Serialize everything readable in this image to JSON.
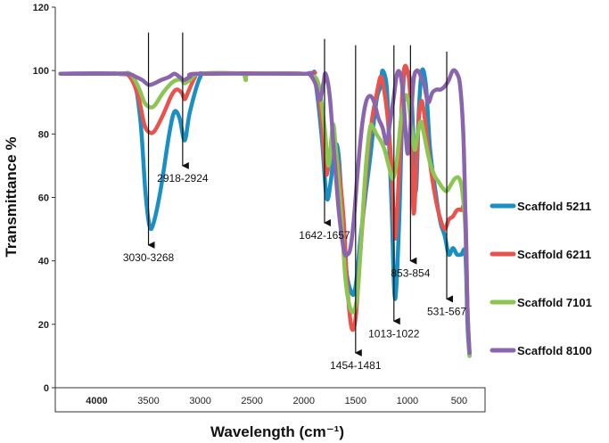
{
  "chart_data": {
    "type": "line",
    "title": "",
    "xlabel": "Wavelength (cm⁻¹)",
    "ylabel": "Transmittance %",
    "xlim": [
      4400,
      250
    ],
    "ylim": [
      0,
      120
    ],
    "y_ticks": [
      0,
      20,
      40,
      60,
      80,
      100,
      120
    ],
    "x_ticks": [
      {
        "value": 4000,
        "label": "4000",
        "bold": true
      },
      {
        "value": 3500,
        "label": "3500"
      },
      {
        "value": 3000,
        "label": "3000"
      },
      {
        "value": 2500,
        "label": "2500"
      },
      {
        "value": 2000,
        "label": "2000"
      },
      {
        "value": 1500,
        "label": "1500"
      },
      {
        "value": 1000,
        "label": "1000"
      },
      {
        "value": 500,
        "label": "500"
      }
    ],
    "legend_position": "right",
    "series": [
      {
        "name": "Scaffold 5211",
        "color": "#1a8fc4",
        "points": [
          [
            4350,
            99
          ],
          [
            3800,
            99
          ],
          [
            3650,
            97
          ],
          [
            3580,
            85
          ],
          [
            3530,
            62
          ],
          [
            3490,
            51
          ],
          [
            3450,
            52
          ],
          [
            3380,
            63
          ],
          [
            3300,
            80
          ],
          [
            3250,
            87
          ],
          [
            3200,
            85
          ],
          [
            3150,
            78
          ],
          [
            3100,
            87
          ],
          [
            3000,
            98
          ],
          [
            2900,
            99
          ],
          [
            2000,
            99
          ],
          [
            1900,
            98
          ],
          [
            1830,
            80
          ],
          [
            1780,
            60
          ],
          [
            1740,
            65
          ],
          [
            1700,
            76
          ],
          [
            1660,
            72
          ],
          [
            1600,
            40
          ],
          [
            1540,
            30
          ],
          [
            1500,
            32
          ],
          [
            1450,
            48
          ],
          [
            1400,
            62
          ],
          [
            1350,
            75
          ],
          [
            1320,
            85
          ],
          [
            1290,
            92
          ],
          [
            1260,
            95
          ],
          [
            1240,
            100
          ],
          [
            1200,
            95
          ],
          [
            1180,
            80
          ],
          [
            1150,
            55
          ],
          [
            1120,
            28
          ],
          [
            1080,
            52
          ],
          [
            1040,
            95
          ],
          [
            1000,
            100
          ],
          [
            960,
            92
          ],
          [
            920,
            62
          ],
          [
            890,
            87
          ],
          [
            860,
            100
          ],
          [
            820,
            95
          ],
          [
            780,
            75
          ],
          [
            720,
            60
          ],
          [
            680,
            52
          ],
          [
            640,
            48
          ],
          [
            600,
            42
          ],
          [
            560,
            44
          ],
          [
            520,
            42
          ],
          [
            480,
            42
          ],
          [
            440,
            42
          ],
          [
            420,
            20
          ],
          [
            400,
            10
          ]
        ]
      },
      {
        "name": "Scaffold 6211",
        "color": "#e8534e",
        "points": [
          [
            4350,
            99
          ],
          [
            3800,
            99
          ],
          [
            3680,
            98
          ],
          [
            3600,
            92
          ],
          [
            3540,
            83
          ],
          [
            3490,
            80.5
          ],
          [
            3440,
            81
          ],
          [
            3360,
            86
          ],
          [
            3280,
            92
          ],
          [
            3230,
            94
          ],
          [
            3180,
            93
          ],
          [
            3150,
            91
          ],
          [
            3120,
            93
          ],
          [
            3050,
            98
          ],
          [
            3000,
            99
          ],
          [
            2000,
            99
          ],
          [
            1900,
            98
          ],
          [
            1830,
            85
          ],
          [
            1790,
            68
          ],
          [
            1760,
            70
          ],
          [
            1720,
            76
          ],
          [
            1680,
            73
          ],
          [
            1620,
            55
          ],
          [
            1580,
            32
          ],
          [
            1540,
            19
          ],
          [
            1500,
            22
          ],
          [
            1460,
            40
          ],
          [
            1420,
            58
          ],
          [
            1380,
            74
          ],
          [
            1340,
            85
          ],
          [
            1300,
            92
          ],
          [
            1260,
            98
          ],
          [
            1230,
            95
          ],
          [
            1190,
            85
          ],
          [
            1150,
            68
          ],
          [
            1120,
            47
          ],
          [
            1080,
            68
          ],
          [
            1040,
            98
          ],
          [
            1000,
            100
          ],
          [
            970,
            90
          ],
          [
            940,
            55
          ],
          [
            900,
            80
          ],
          [
            870,
            90
          ],
          [
            840,
            87
          ],
          [
            790,
            73
          ],
          [
            730,
            60
          ],
          [
            680,
            53
          ],
          [
            640,
            50
          ],
          [
            600,
            53
          ],
          [
            560,
            54
          ],
          [
            520,
            56
          ],
          [
            480,
            56
          ],
          [
            440,
            55
          ],
          [
            420,
            25
          ],
          [
            400,
            11
          ]
        ]
      },
      {
        "name": "Scaffold 7101",
        "color": "#8dc554",
        "points": [
          [
            4350,
            99
          ],
          [
            3800,
            99
          ],
          [
            3680,
            99
          ],
          [
            3600,
            95
          ],
          [
            3540,
            90
          ],
          [
            3490,
            88.5
          ],
          [
            3440,
            89
          ],
          [
            3360,
            93
          ],
          [
            3280,
            96
          ],
          [
            3230,
            97
          ],
          [
            3180,
            97
          ],
          [
            3150,
            96
          ],
          [
            3100,
            97
          ],
          [
            3000,
            99
          ],
          [
            2600,
            99
          ],
          [
            2560,
            97
          ],
          [
            2520,
            99
          ],
          [
            2000,
            99
          ],
          [
            1950,
            99
          ],
          [
            1860,
            96
          ],
          [
            1800,
            82
          ],
          [
            1760,
            70
          ],
          [
            1720,
            83
          ],
          [
            1690,
            75
          ],
          [
            1640,
            55
          ],
          [
            1600,
            35
          ],
          [
            1560,
            26
          ],
          [
            1520,
            24
          ],
          [
            1480,
            30
          ],
          [
            1440,
            50
          ],
          [
            1400,
            70
          ],
          [
            1360,
            82
          ],
          [
            1330,
            82
          ],
          [
            1300,
            80
          ],
          [
            1260,
            78
          ],
          [
            1220,
            75
          ],
          [
            1180,
            70
          ],
          [
            1140,
            66
          ],
          [
            1100,
            72
          ],
          [
            1060,
            85
          ],
          [
            1020,
            92
          ],
          [
            990,
            90
          ],
          [
            960,
            82
          ],
          [
            930,
            75
          ],
          [
            900,
            80
          ],
          [
            870,
            84
          ],
          [
            840,
            80
          ],
          [
            790,
            72
          ],
          [
            740,
            67
          ],
          [
            700,
            65
          ],
          [
            660,
            63
          ],
          [
            620,
            62
          ],
          [
            580,
            64
          ],
          [
            540,
            66
          ],
          [
            500,
            66
          ],
          [
            470,
            62
          ],
          [
            440,
            50
          ],
          [
            420,
            25
          ],
          [
            400,
            10
          ]
        ]
      },
      {
        "name": "Scaffold 8100",
        "color": "#8a65ad",
        "points": [
          [
            4350,
            99
          ],
          [
            3900,
            99
          ],
          [
            3700,
            99
          ],
          [
            3620,
            98
          ],
          [
            3560,
            97
          ],
          [
            3500,
            95.5
          ],
          [
            3440,
            96
          ],
          [
            3380,
            97
          ],
          [
            3300,
            98
          ],
          [
            3250,
            99
          ],
          [
            3200,
            98
          ],
          [
            3160,
            97
          ],
          [
            3100,
            98
          ],
          [
            3000,
            99
          ],
          [
            2000,
            99
          ],
          [
            1950,
            99
          ],
          [
            1890,
            96
          ],
          [
            1860,
            92
          ],
          [
            1840,
            91
          ],
          [
            1810,
            96
          ],
          [
            1790,
            99
          ],
          [
            1750,
            92
          ],
          [
            1710,
            75
          ],
          [
            1660,
            55
          ],
          [
            1610,
            43
          ],
          [
            1580,
            42
          ],
          [
            1550,
            44
          ],
          [
            1520,
            52
          ],
          [
            1480,
            68
          ],
          [
            1440,
            82
          ],
          [
            1400,
            90
          ],
          [
            1360,
            92
          ],
          [
            1320,
            90
          ],
          [
            1280,
            85
          ],
          [
            1240,
            82
          ],
          [
            1200,
            77
          ],
          [
            1170,
            83
          ],
          [
            1130,
            92
          ],
          [
            1100,
            99
          ],
          [
            1070,
            99
          ],
          [
            1040,
            92
          ],
          [
            1000,
            74
          ],
          [
            970,
            83
          ],
          [
            940,
            97
          ],
          [
            910,
            100
          ],
          [
            880,
            99
          ],
          [
            860,
            97
          ],
          [
            840,
            96
          ],
          [
            800,
            90
          ],
          [
            760,
            93
          ],
          [
            720,
            94
          ],
          [
            680,
            94
          ],
          [
            640,
            95
          ],
          [
            600,
            97
          ],
          [
            560,
            100
          ],
          [
            520,
            99
          ],
          [
            490,
            95
          ],
          [
            460,
            80
          ],
          [
            440,
            55
          ],
          [
            420,
            25
          ],
          [
            400,
            11
          ]
        ]
      }
    ],
    "annotations": [
      {
        "label": "3030-3268",
        "x": 3500,
        "y_top": 112,
        "y_tip": 45
      },
      {
        "label": "2918-2924",
        "x": 3170,
        "y_top": 112,
        "y_tip": 70
      },
      {
        "label": "1642-1657",
        "x": 1800,
        "y_top": 110,
        "y_tip": 52
      },
      {
        "label": "1454-1481",
        "x": 1500,
        "y_top": 108,
        "y_tip": 11
      },
      {
        "label": "1013-1022",
        "x": 1130,
        "y_top": 108,
        "y_tip": 21
      },
      {
        "label": "853-854",
        "x": 970,
        "y_top": 108,
        "y_tip": 40
      },
      {
        "label": "531-567",
        "x": 620,
        "y_top": 106,
        "y_tip": 28
      }
    ]
  }
}
